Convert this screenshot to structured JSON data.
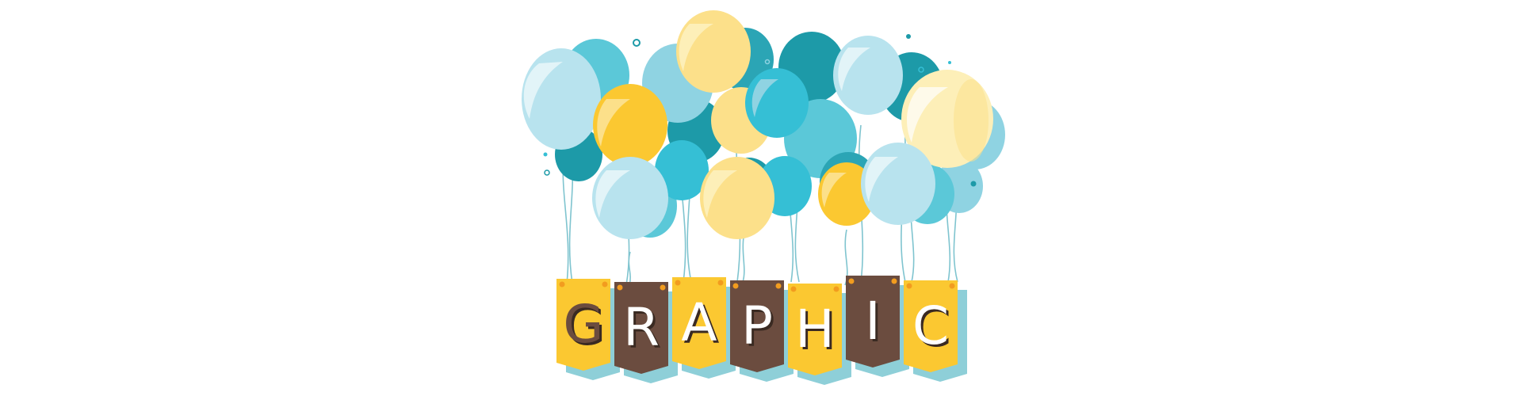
{
  "banner": {
    "letters": [
      "G",
      "R",
      "A",
      "P",
      "H",
      "I",
      "C"
    ]
  },
  "colors": {
    "background": "#ffffff",
    "yellow": "#fbc831",
    "yellow_light": "#fce08a",
    "cream": "#fdefb8",
    "teal_dark": "#1d9aa8",
    "teal": "#35bfd5",
    "sky": "#8fd3e2",
    "sky_light": "#b8e3ee",
    "brown": "#6b4c3f",
    "banner_shadow": "#8ecfd8",
    "string": "#7fc4cf"
  }
}
